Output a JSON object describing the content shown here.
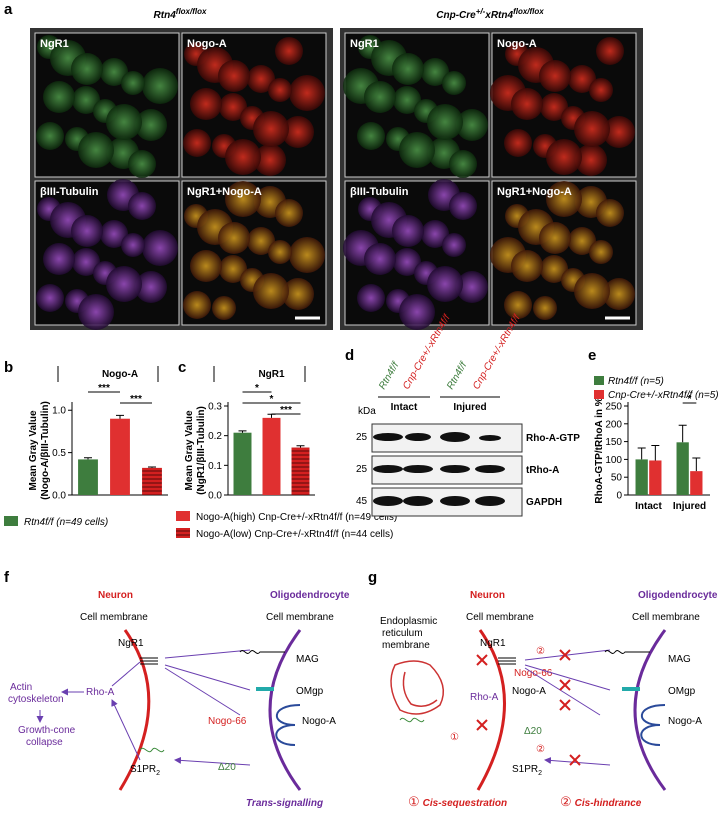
{
  "panel_labels": [
    "a",
    "b",
    "c",
    "d",
    "e",
    "f",
    "g"
  ],
  "panel_a": {
    "left_title": {
      "base": "Rtn4",
      "sup": "flox/flox"
    },
    "right_title": {
      "base": "Cnp-Cre",
      "sup1": "+/-",
      "mid": "xRtn4",
      "sup2": "flox/flox"
    },
    "image_labels": [
      "NgR1",
      "Nogo-A",
      "βIII-Tubulin",
      "NgR1+Nogo-A"
    ]
  },
  "chart_data": [
    {
      "type": "bar",
      "title": "Nogo-A",
      "ylabel": [
        "Mean Gray Value",
        "(Nogo-A/βIII-Tubulin)"
      ],
      "categories": [
        null,
        null,
        null
      ],
      "values": [
        0.42,
        0.9,
        0.32
      ],
      "errors": [
        0.02,
        0.04,
        0.01
      ],
      "colors": [
        "#3e7d3e",
        "#e03030",
        "#d42020"
      ],
      "hatched": [
        false,
        false,
        true
      ],
      "ylim": [
        0,
        1.05
      ],
      "yticks": [
        {
          "value": 0,
          "label": "0.0"
        },
        {
          "value": 0.5,
          "label": "0.5"
        },
        {
          "value": 1,
          "label": "1.0"
        }
      ],
      "annotations": [
        "***",
        "***"
      ]
    },
    {
      "type": "bar",
      "title": "NgR1",
      "ylabel": [
        "Mean Gray Value",
        "(NgR1/βIII-Tubulin)"
      ],
      "categories": [
        null,
        null,
        null
      ],
      "values": [
        0.21,
        0.26,
        0.16
      ],
      "errors": [
        0.006,
        0.012,
        0.006
      ],
      "colors": [
        "#3e7d3e",
        "#e03030",
        "#d42020"
      ],
      "hatched": [
        false,
        false,
        true
      ],
      "ylim": [
        0,
        0.3
      ],
      "yticks": [
        {
          "value": 0,
          "label": "0.0"
        },
        0.1,
        0.2,
        0.3
      ],
      "annotations": [
        "*",
        "*",
        "***"
      ]
    },
    {
      "type": "grouped-bar",
      "ylabel": [
        "RhoA-GTP/tRhoA in %"
      ],
      "categories": [
        "Intact",
        "Injured"
      ],
      "series": [
        {
          "name": "Rtn4f/f (n=5)",
          "color": "#3e7d3e",
          "values": [
            100,
            148
          ],
          "errors": [
            32,
            48
          ]
        },
        {
          "name": "Cnp-Cre+/-xRtn4f/f (n=5)",
          "color": "#e03030",
          "values": [
            97,
            67
          ],
          "errors": [
            42,
            37
          ]
        }
      ],
      "ylim": [
        0,
        250
      ],
      "yticks": [
        0,
        50,
        100,
        150,
        200,
        250
      ],
      "annotations": [
        "*"
      ]
    }
  ],
  "legend_bc": [
    "Rtn4f/f (n=49 cells)",
    "Nogo-A(high) Cnp-Cre+/-xRtn4f/f (n=49 cells)",
    "Nogo-A(low) Cnp-Cre+/-xRtn4f/f (n=44 cells)"
  ],
  "panel_d": {
    "lanes": [
      "Rtn4f/f",
      "Cnp-Cre+/-xRtn4f/f",
      "Rtn4f/f",
      "Cnp-Cre+/-xRtn4f/f"
    ],
    "groups": [
      "Intact",
      "Injured"
    ],
    "kda_header": "kDa",
    "kda": [
      "25",
      "25",
      "45"
    ],
    "bands": [
      "Rho-A-GTP",
      "tRho-A",
      "GAPDH"
    ]
  },
  "panel_f": {
    "neuron": "Neuron",
    "oligodendrocyte": "Oligodendrocyte",
    "membrane": "Cell membrane",
    "ngr1": "NgR1",
    "rhoa": "Rho-A",
    "actin": [
      "Actin",
      "cytoskeleton"
    ],
    "collapse": [
      "Growth-cone",
      "collapse"
    ],
    "s1pr": "S1PR",
    "s1pr_sub": "2",
    "mag": "MAG",
    "omgp": "OMgp",
    "nogoa": "Nogo-A",
    "nogo66": "Nogo-66",
    "delta20": "Δ20",
    "caption": "Trans-signalling"
  },
  "panel_g": {
    "neuron": "Neuron",
    "oligodendrocyte": "Oligodendrocyte",
    "membrane": "Cell membrane",
    "er": [
      "Endoplasmic",
      "reticulum",
      "membrane"
    ],
    "ngr1": "NgR1",
    "nogo66": "Nogo-66",
    "nogoa": "Nogo-A",
    "rhoa": "Rho-A",
    "delta20": "Δ20",
    "s1pr": "S1PR",
    "s1pr_sub": "2",
    "mag": "MAG",
    "omgp": "OMgp",
    "one": "①",
    "two": "②",
    "cis1": "Cis-sequestration",
    "cis2": "Cis-hindrance"
  }
}
